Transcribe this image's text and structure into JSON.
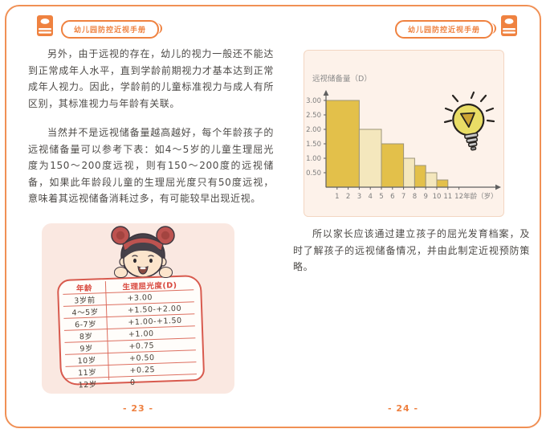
{
  "header": {
    "title": "幼儿园防控近视手册"
  },
  "left_page": {
    "para1": "另外，由于远视的存在，幼儿的视力一般还不能达到正常成年人水平，直到学龄前期视力才基本达到正常成年人视力。因此，学龄前的儿童标准视力与成人有所区别，其标准视力与年龄有关联。",
    "para2": "当然并不是远视储备量越高越好，每个年龄孩子的远视储备量可以参考下表：如4～5岁的儿童生理屈光度为150～200度远视，则有150～200度的远视储备，如果此年龄段儿童的生理屈光度只有50度远视，意味着其远视储备消耗过多，有可能较早出现近视。",
    "table": {
      "col1_header": "年龄",
      "col2_header": "生理屈光度(D)",
      "rows": [
        [
          "3岁前",
          "+3.00"
        ],
        [
          "4～5岁",
          "+1.50-+2.00"
        ],
        [
          "6-7岁",
          "+1.00-+1.50"
        ],
        [
          "8岁",
          "+1.00"
        ],
        [
          "9岁",
          "+0.75"
        ],
        [
          "10岁",
          "+0.50"
        ],
        [
          "11岁",
          "+0.25"
        ],
        [
          "12岁",
          "0"
        ]
      ]
    },
    "page_number": "- 23 -"
  },
  "right_page": {
    "para": "所以家长应该通过建立孩子的屈光发育档案，及时了解孩子的远视储备情况，并由此制定近视预防策略。",
    "page_number": "- 24 -"
  },
  "chart_data": {
    "type": "bar",
    "title": "",
    "ylabel": "远视储备量（D）",
    "xlabel": "年龄（岁）",
    "ylim": [
      0,
      3.0
    ],
    "yticks": [
      0.5,
      1.0,
      1.5,
      2.0,
      2.5,
      3.0
    ],
    "xticks": [
      1,
      2,
      3,
      4,
      5,
      6,
      7,
      8,
      9,
      10,
      11,
      12
    ],
    "grid": false,
    "legend": "none",
    "segments": [
      {
        "age_from": 0,
        "age_to": 3,
        "value": 3.0,
        "color": "#e3c04a"
      },
      {
        "age_from": 3,
        "age_to": 5,
        "value": 2.0,
        "color": "#f4e7bd"
      },
      {
        "age_from": 5,
        "age_to": 7,
        "value": 1.5,
        "color": "#e3c04a"
      },
      {
        "age_from": 7,
        "age_to": 8,
        "value": 1.0,
        "color": "#f4e7bd"
      },
      {
        "age_from": 8,
        "age_to": 9,
        "value": 0.75,
        "color": "#e3c04a"
      },
      {
        "age_from": 9,
        "age_to": 10,
        "value": 0.5,
        "color": "#f4e7bd"
      },
      {
        "age_from": 10,
        "age_to": 11,
        "value": 0.25,
        "color": "#e3c04a"
      }
    ],
    "bar_stroke": "#9c9478",
    "axis_color": "#5f5f5f",
    "tick_label_color": "#7e7e7e"
  },
  "colors": {
    "accent_orange": "#ef8240",
    "frame_orange": "#f09055",
    "board_red": "#d85a4e",
    "panel_pink": "#fae8e1",
    "chart_panel_bg": "#fdf2ea"
  }
}
